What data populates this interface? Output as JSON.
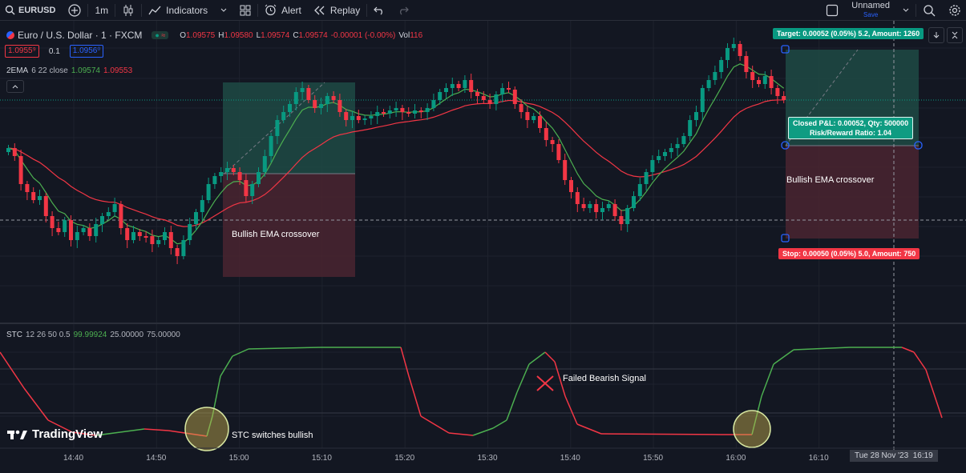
{
  "topbar": {
    "symbol": "EURUSD",
    "interval": "1m",
    "indicators_label": "Indicators",
    "alert_label": "Alert",
    "replay_label": "Replay",
    "layout_name": "Unnamed",
    "save_label": "Save"
  },
  "legend": {
    "title": "Euro / U.S. Dollar · 1 · FXCM",
    "open_label": "O",
    "open": "1.09575",
    "high_label": "H",
    "high": "1.09580",
    "low_label": "L",
    "low": "1.09574",
    "close_label": "C",
    "close": "1.09574",
    "change": "-0.00001 (-0.00%)",
    "vol_label": "Vol",
    "vol": "116",
    "sell_price": "1.0955⁹",
    "spread": "0.1",
    "buy_price": "1.0956⁰"
  },
  "ema": {
    "name": "2EMA",
    "params": "6 22 close",
    "val1": "1.09574",
    "val2": "1.09553"
  },
  "stc": {
    "name": "STC",
    "params": "12 26 50 0.5",
    "val": "99.99924",
    "lvl1": "25.00000",
    "lvl2": "75.00000"
  },
  "position": {
    "target_label": "Target: 0.00052 (0.05%) 5.2, Amount: 1260",
    "stop_label": "Stop: 0.00050 (0.05%) 5.0, Amount: 750",
    "pnl_line1": "Closed P&L: 0.00052, Qty: 500000",
    "pnl_line2": "Risk/Reward Ratio: 1.04"
  },
  "annotations": {
    "crossover1": "Bullish EMA crossover",
    "crossover2": "Bullish EMA crossover",
    "failed": "Failed Bearish Signal",
    "stc_switch": "STC switches bullish"
  },
  "time_axis": [
    "14:40",
    "14:50",
    "15:00",
    "15:10",
    "15:20",
    "15:30",
    "15:40",
    "15:50",
    "16:00",
    "16:10"
  ],
  "crosshair_time": "Tue 28 Nov '23",
  "crosshair_clock": "16:19",
  "brand": "TradingView",
  "colors": {
    "bull": "#089981",
    "bear": "#f23645",
    "ema_fast": "#4caf50",
    "ema_slow": "#f23645",
    "target_zone": "#1e4d45",
    "stop_zone": "#4d2630"
  }
}
